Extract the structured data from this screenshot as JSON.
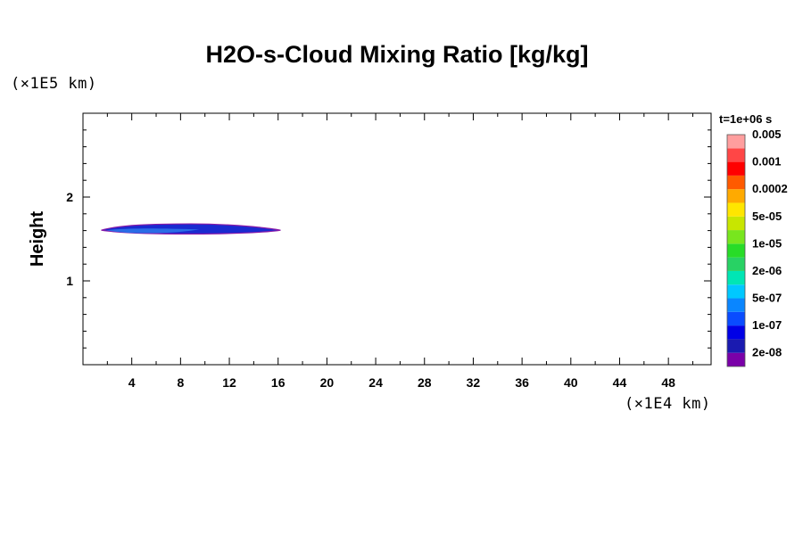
{
  "chart_data": {
    "type": "heatmap",
    "title": "H2O-s-Cloud Mixing Ratio [kg/kg]",
    "xlabel": "",
    "ylabel": "Height",
    "x_scale_label": "(×1E4 km)",
    "y_scale_label": "(×1E5 km)",
    "time_label": "t=1e+06 s",
    "xlim": [
      0,
      51.5
    ],
    "ylim": [
      0,
      3.0
    ],
    "x_ticks": [
      4,
      8,
      12,
      16,
      20,
      24,
      28,
      32,
      36,
      40,
      44,
      48
    ],
    "y_ticks": [
      1,
      2
    ],
    "grid": false,
    "colorbar": {
      "colors": [
        "#7a00a8",
        "#1a1ab0",
        "#0000e6",
        "#0a4cff",
        "#0a86ff",
        "#00c8ff",
        "#00e6b4",
        "#28d264",
        "#28dc28",
        "#78e61e",
        "#c8e600",
        "#ffe600",
        "#ffaa00",
        "#ff5a00",
        "#ff0000",
        "#ff4646",
        "#ff9e9e"
      ],
      "labels": [
        "2e-08",
        "1e-07",
        "5e-07",
        "2e-06",
        "1e-05",
        "5e-05",
        "0.0002",
        "0.001",
        "0.005"
      ]
    },
    "region": {
      "x_range": [
        1.5,
        16.2
      ],
      "y_range": [
        1.55,
        1.68
      ],
      "fill_colors": [
        "#1a2ad0",
        "#2a6ce6"
      ],
      "edge_color": "#8a1aa8"
    }
  }
}
